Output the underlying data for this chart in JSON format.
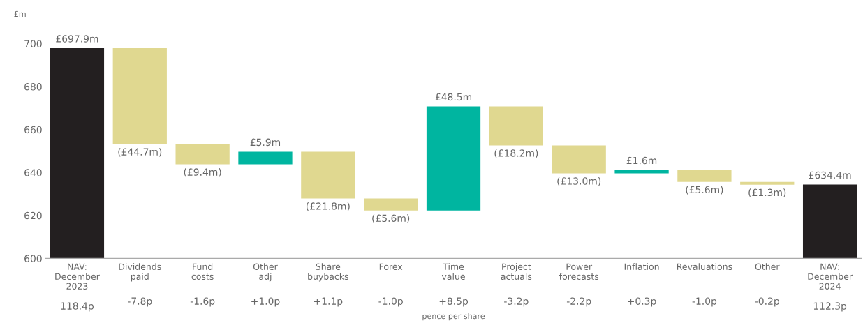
{
  "chart_data": {
    "type": "bar",
    "ylabel": "£m",
    "xlabel": "pence per share",
    "categories": [
      "NAV:\nDecember\n2023",
      "Dividends\npaid",
      "Fund\ncosts",
      "Other\nadj",
      "Share\nbuybacks",
      "Forex",
      "Time\nvalue",
      "Project\nactuals",
      "Power\nforecasts",
      "Inflation",
      "Revaluations",
      "Other",
      "NAV:\nDecember\n2024"
    ],
    "values": [
      697.9,
      -44.7,
      -9.4,
      5.9,
      -21.8,
      -5.6,
      48.5,
      -18.2,
      -13.0,
      1.6,
      -5.6,
      -1.3,
      634.4
    ],
    "base": [
      null,
      697.9,
      653.2,
      643.8,
      649.7,
      627.9,
      622.3,
      670.8,
      652.6,
      639.6,
      641.2,
      635.6,
      null
    ],
    "colors": [
      "#231f20",
      "#e0d890",
      "#e0d890",
      "#00b5a0",
      "#e0d890",
      "#e0d890",
      "#00b5a0",
      "#e0d890",
      "#e0d890",
      "#00b5a0",
      "#e0d890",
      "#e0d890",
      "#231f20"
    ],
    "value_labels": [
      "£697.9m",
      "(£44.7m)",
      "(£9.4m)",
      "£5.9m",
      "(£21.8m)",
      "(£5.6m)",
      "£48.5m",
      "(£18.2m)",
      "(£13.0m)",
      "£1.6m",
      "(£5.6m)",
      "(£1.3m)",
      "£634.4m"
    ],
    "annotations": [
      "118.4p",
      "-7.8p",
      "-1.6p",
      "+1.0p",
      "+1.1p",
      "-1.0p",
      "+8.5p",
      "-3.2p",
      "-2.2p",
      "+0.3p",
      "-1.0p",
      "-0.2p",
      "112.3p"
    ],
    "ylim": [
      600,
      700
    ],
    "yticks": [
      600,
      620,
      640,
      660,
      680,
      700
    ],
    "grid": false,
    "legend": false
  }
}
